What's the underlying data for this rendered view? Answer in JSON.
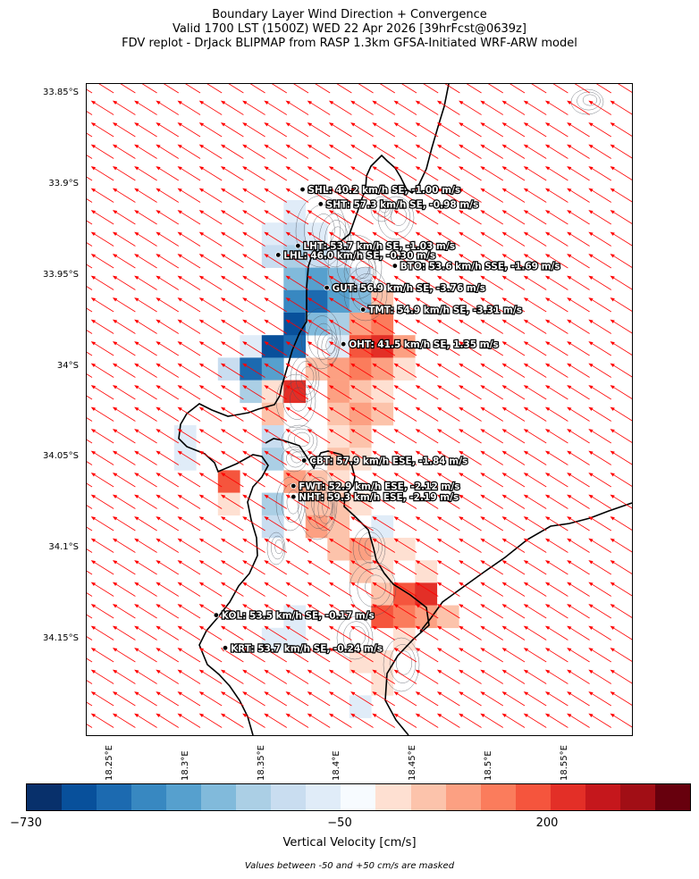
{
  "title": {
    "line1": "Boundary Layer Wind Direction + Convergence",
    "line2": "Valid 1700 LST (1500Z) WED 22 Apr 2026 [39hrFcst@0639z]",
    "line3": "FDV replot - DrJack BLIPMAP from RASP 1.3km GFSA-Initiated WRF-ARW model"
  },
  "map": {
    "lat_labels": [
      "33.85°S",
      "33.9°S",
      "33.95°S",
      "34°S",
      "34.05°S",
      "34.1°S",
      "34.15°S"
    ],
    "lon_labels": [
      "18.25°E",
      "18.3°E",
      "18.35°E",
      "18.4°E",
      "18.45°E",
      "18.5°E",
      "18.55°E"
    ],
    "lat_values": [
      -33.85,
      -33.9,
      -33.95,
      -34.0,
      -34.05,
      -34.1,
      -34.15
    ],
    "lon_values": [
      18.25,
      18.3,
      18.35,
      18.4,
      18.45,
      18.5,
      18.55
    ],
    "lon_range": [
      18.2345,
      18.5945
    ],
    "lat_range": [
      -34.203,
      -33.845
    ],
    "wind_arrow_color": "#ff0000",
    "stations": [
      {
        "code": "SHL",
        "lon": 18.377,
        "lat": -33.903,
        "label": "SHL: 40.2 km/h SE, -1.00 m/s"
      },
      {
        "code": "SHT",
        "lon": 18.389,
        "lat": -33.911,
        "label": "SHT: 57.3 km/h SE, -0.98 m/s"
      },
      {
        "code": "LHT",
        "lon": 18.374,
        "lat": -33.934,
        "label": "LHT: 53.7 km/h SE, -1.03 m/s"
      },
      {
        "code": "LHL",
        "lon": 18.361,
        "lat": -33.939,
        "label": "LHL: 46.0 km/h SE, -0.30 m/s"
      },
      {
        "code": "BTO",
        "lon": 18.438,
        "lat": -33.945,
        "label": "BTO: 53.6 km/h SSE, -1.69 m/s"
      },
      {
        "code": "GUT",
        "lon": 18.393,
        "lat": -33.957,
        "label": "GUT: 56.9 km/h SE, -3.76 m/s"
      },
      {
        "code": "TMT",
        "lon": 18.417,
        "lat": -33.969,
        "label": "TMT: 54.9 km/h SE, -3.31 m/s"
      },
      {
        "code": "OHT",
        "lon": 18.404,
        "lat": -33.988,
        "label": "OHT: 41.5 km/h SE, 1.35 m/s"
      },
      {
        "code": "CBT",
        "lon": 18.378,
        "lat": -34.052,
        "label": "CBT: 57.9 km/h ESE, -1.84 m/s"
      },
      {
        "code": "FWT",
        "lon": 18.371,
        "lat": -34.066,
        "label": "FWT: 52.9 km/h ESE, -2.12 m/s"
      },
      {
        "code": "NHT",
        "lon": 18.371,
        "lat": -34.072,
        "label": "NHT: 59.3 km/h ESE, -2.19 m/s"
      },
      {
        "code": "KOL",
        "lon": 18.32,
        "lat": -34.137,
        "label": "KOL: 53.5 km/h SE, -0.17 m/s"
      },
      {
        "code": "KRT",
        "lon": 18.326,
        "lat": -34.155,
        "label": "KRT: 53.7 km/h SE, -0.24 m/s"
      }
    ]
  },
  "colorbar": {
    "title": "Vertical Velocity [cm/s]",
    "ticks": [
      {
        "label": "−730",
        "value": -730
      },
      {
        "label": "−50",
        "value": -50
      },
      {
        "label": "200",
        "value": 200
      }
    ],
    "colors": [
      "#08306b",
      "#08509b",
      "#1c6ab0",
      "#3888c1",
      "#56a0ce",
      "#81badb",
      "#abcfe5",
      "#c9ddf0",
      "#e0ecf8",
      "#f7fbff",
      "#fee0d2",
      "#fcc3ab",
      "#fca082",
      "#fb7c5c",
      "#f5553d",
      "#e32f27",
      "#c5171c",
      "#a10e15",
      "#67000d"
    ],
    "note": "Values between -50 and +50 cm/s are masked"
  }
}
